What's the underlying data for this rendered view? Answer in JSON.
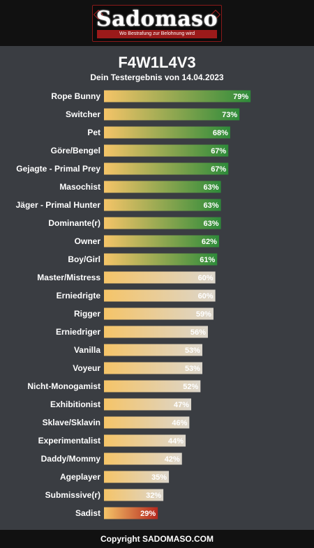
{
  "header": {
    "brand": "Sadomaso",
    "tagline": "Wo Bestrafung zur Belohnung wird"
  },
  "title": "F4W1L4V3",
  "subtitle": "Dein Testergebnis von 14.04.2023",
  "footer": "Copyright SADOMASO.COM",
  "colors": {
    "bar_start": "#f5c468",
    "high": "#2e8b3a",
    "mid": "#dcd6cc",
    "low": "#b5281e",
    "background": "#3a3d42",
    "bar_end_high_threshold": "61"
  },
  "chart_data": {
    "type": "bar",
    "orientation": "horizontal",
    "xlim": [
      0,
      100
    ],
    "categories": [
      "Rope Bunny",
      "Switcher",
      "Pet",
      "Göre/Bengel",
      "Gejagte - Primal Prey",
      "Masochist",
      "Jäger - Primal Hunter",
      "Dominante(r)",
      "Owner",
      "Boy/Girl",
      "Master/Mistress",
      "Erniedrigte",
      "Rigger",
      "Erniedriger",
      "Vanilla",
      "Voyeur",
      "Nicht-Monogamist",
      "Exhibitionist",
      "Sklave/Sklavin",
      "Experimentalist",
      "Daddy/Mommy",
      "Ageplayer",
      "Submissive(r)",
      "Sadist"
    ],
    "values": [
      79,
      73,
      68,
      67,
      67,
      63,
      63,
      63,
      62,
      61,
      60,
      60,
      59,
      56,
      53,
      53,
      52,
      47,
      46,
      44,
      42,
      35,
      32,
      29
    ],
    "labels": [
      "79%",
      "73%",
      "68%",
      "67%",
      "67%",
      "63%",
      "63%",
      "63%",
      "62%",
      "61%",
      "60%",
      "60%",
      "59%",
      "56%",
      "53%",
      "53%",
      "52%",
      "47%",
      "46%",
      "44%",
      "42%",
      "35%",
      "32%",
      "29%"
    ],
    "bar_color_group": [
      "high",
      "high",
      "high",
      "high",
      "high",
      "high",
      "high",
      "high",
      "high",
      "high",
      "mid",
      "mid",
      "mid",
      "mid",
      "mid",
      "mid",
      "mid",
      "mid",
      "mid",
      "mid",
      "mid",
      "mid",
      "mid",
      "low"
    ]
  }
}
